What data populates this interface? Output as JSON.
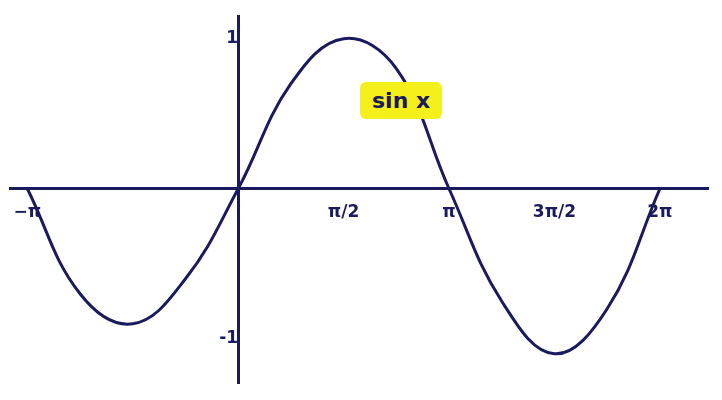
{
  "chart_data": {
    "type": "line",
    "title": "sin x",
    "x": [
      -3.1416,
      -2.3562,
      -1.5708,
      -0.7854,
      0,
      0.7854,
      1.5708,
      2.3562,
      3.1416,
      3.927,
      4.7124,
      5.4978,
      6.2832
    ],
    "values": [
      0,
      -0.7,
      -0.9,
      -0.6,
      0,
      0.7,
      1,
      0.8,
      0,
      -0.75,
      -1.1,
      -0.8,
      0
    ],
    "color": "#1a1a5e",
    "xlim": [
      -3.4,
      7.0
    ],
    "xticks": [
      {
        "value": -3.1416,
        "label": "−π"
      },
      {
        "value": 1.5708,
        "label": "π/2"
      },
      {
        "value": 3.1416,
        "label": "π"
      },
      {
        "value": 4.7124,
        "label": "3π/2"
      },
      {
        "value": 6.2832,
        "label": "2π"
      }
    ],
    "ylim": [
      -1.3,
      1.15
    ],
    "yticks": [
      -1,
      1
    ],
    "grid": false
  }
}
